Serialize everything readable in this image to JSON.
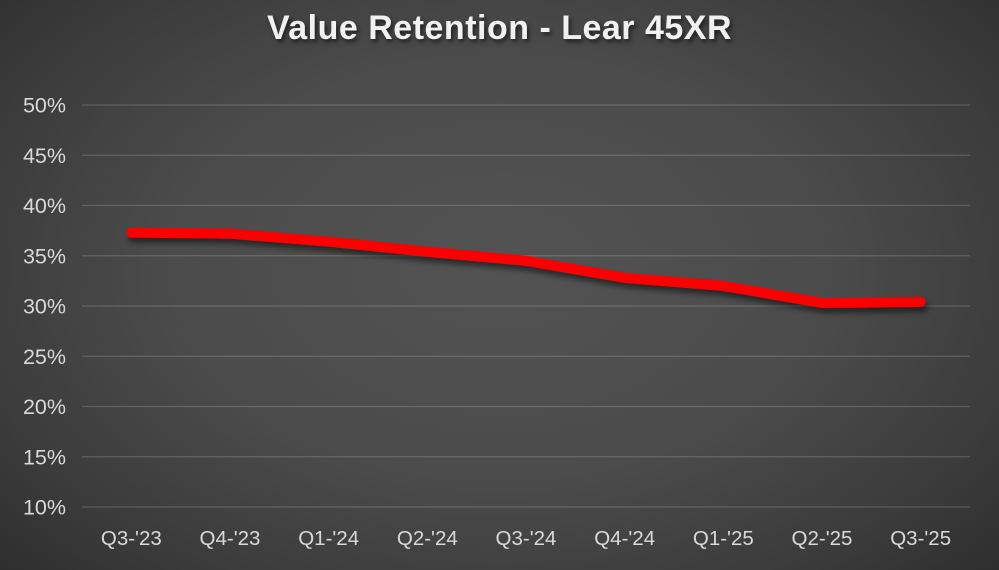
{
  "title": "Value Retention - Lear 45XR",
  "colors": {
    "background_center": "#535353",
    "background_edge": "#252525",
    "title_text": "#f1f1f1",
    "axis_text": "#d9d9d9",
    "gridline": "rgba(255,255,255,0.17)",
    "line": "#fa0404"
  },
  "chart_data": {
    "type": "line",
    "title": "Value Retention - Lear 45XR",
    "categories": [
      "Q3-'23",
      "Q4-'23",
      "Q1-'24",
      "Q2-'24",
      "Q3-'24",
      "Q4-'24",
      "Q1-'25",
      "Q2-'25",
      "Q3-'25"
    ],
    "series": [
      {
        "name": "Value Retention",
        "values": [
          37.3,
          37.2,
          36.4,
          35.4,
          34.5,
          32.8,
          32.0,
          30.3,
          30.4
        ]
      }
    ],
    "xlabel": "",
    "ylabel": "",
    "ylim": [
      10,
      50
    ],
    "yticks": [
      50,
      45,
      40,
      35,
      30,
      25,
      20,
      15,
      10
    ],
    "ytick_labels": [
      "50%",
      "45%",
      "40%",
      "35%",
      "30%",
      "25%",
      "20%",
      "15%",
      "10%"
    ],
    "grid": true,
    "legend_position": "none"
  }
}
